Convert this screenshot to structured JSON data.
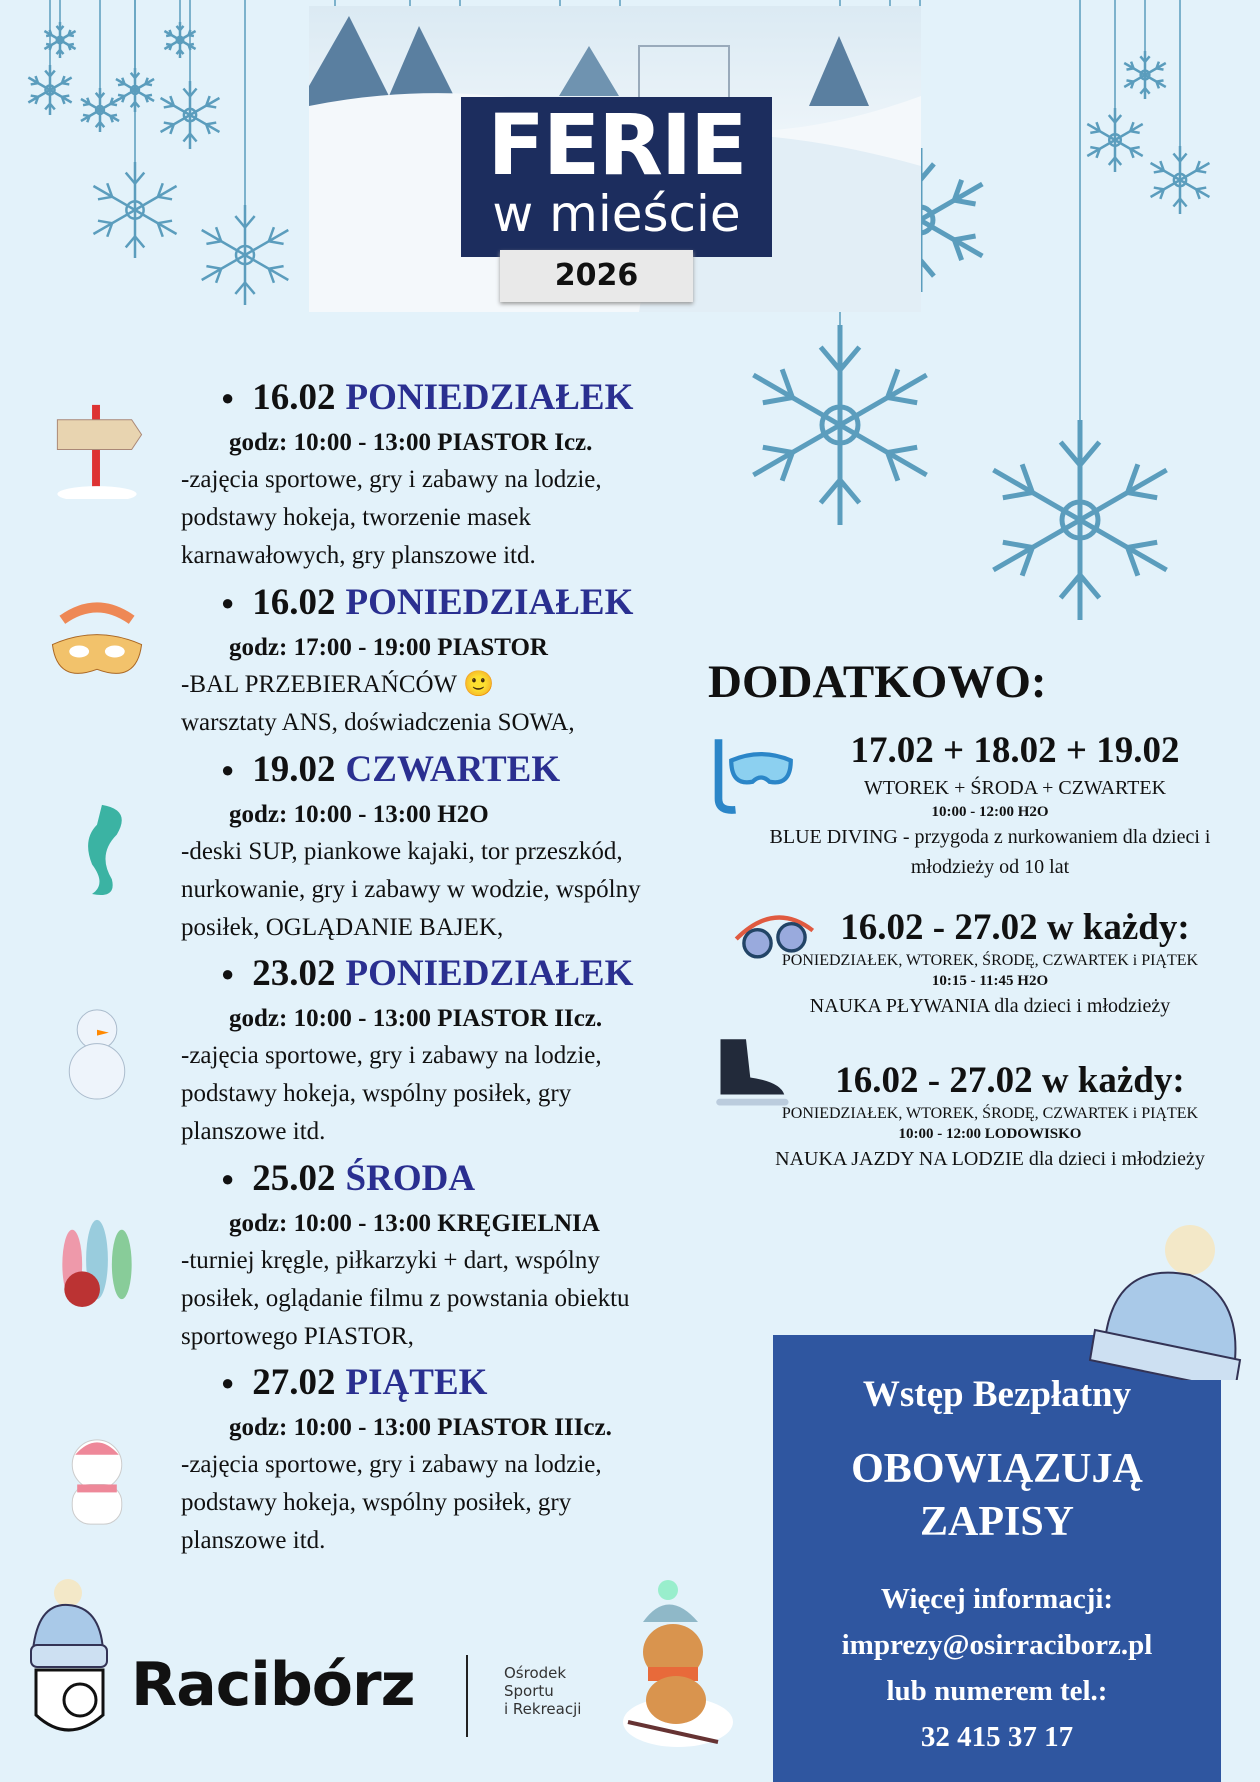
{
  "header": {
    "title": "FERIE",
    "subtitle": "w mieście",
    "year": "2026"
  },
  "events": [
    {
      "date": "16.02",
      "day": "PONIEDZIAŁEK",
      "time": "godz: 10:00 - 13:00 PIASTOR Icz.",
      "desc": "-zajęcia sportowe, gry i zabawy na lodzie,\npodstawy hokeja, tworzenie masek\nkarnawałowych, gry planszowe itd.",
      "icon": "signpost-icon"
    },
    {
      "date": "16.02",
      "day": "PONIEDZIAŁEK",
      "time": "godz: 17:00 - 19:00 PIASTOR",
      "desc": "-BAL PRZEBIERAŃCÓW 🙂\nwarsztaty ANS, doświadczenia SOWA,",
      "icon": "carnival-mask-icon"
    },
    {
      "date": "19.02",
      "day": "CZWARTEK",
      "time": "godz: 10:00 - 13:00 H2O",
      "desc": "-deski SUP, piankowe kajaki, tor przeszkód,\nnurkowanie, gry i zabawy w wodzie, wspólny\nposiłek, OGLĄDANIE BAJEK,",
      "icon": "seahorse-icon"
    },
    {
      "date": "23.02",
      "day": "PONIEDZIAŁEK",
      "time": "godz: 10:00 - 13:00 PIASTOR IIcz.",
      "desc": "-zajęcia sportowe, gry i zabawy na lodzie,\npodstawy hokeja, wspólny posiłek, gry\nplanszowe itd.",
      "icon": "snowman-icon"
    },
    {
      "date": "25.02",
      "day": "ŚRODA",
      "time": "godz: 10:00 - 13:00 KRĘGIELNIA",
      "desc": "-turniej kręgle, piłkarzyki + dart, wspólny\nposiłek, oglądanie filmu z powstania obiektu\nsportowego PIASTOR,",
      "icon": "bowling-icon"
    },
    {
      "date": "27.02",
      "day": "PIĄTEK",
      "time": "godz: 10:00 - 13:00  PIASTOR IIIcz.",
      "desc": "-zajęcia sportowe, gry i zabawy na lodzie,\npodstawy hokeja, wspólny posiłek, gry\nplanszowe itd.",
      "icon": "polar-bear-icon"
    }
  ],
  "extra": {
    "title": "DODATKOWO:",
    "items": [
      {
        "dates": "17.02 + 18.02 + 19.02",
        "days": "WTOREK + ŚRODA + CZWARTEK",
        "time": "10:00 - 12:00 H2O",
        "desc": "BLUE DIVING - przygoda z nurkowaniem dla dzieci i\nmłodzieży od 10 lat",
        "icon": "snorkel-mask-icon"
      },
      {
        "dates": "16.02 - 27.02 w każdy:",
        "days": "PONIEDZIAŁEK, WTOREK, ŚRODĘ, CZWARTEK i PIĄTEK",
        "time": "10:15 - 11:45 H2O",
        "desc": "NAUKA PŁYWANIA dla dzieci i młodzieży",
        "icon": "swim-goggles-icon"
      },
      {
        "dates": "16.02 - 27.02 w każdy:",
        "days": "PONIEDZIAŁEK, WTOREK, ŚRODĘ, CZWARTEK i PIĄTEK",
        "time": "10:00 - 12:00 LODOWISKO",
        "desc": "NAUKA JAZDY NA LODZIE dla dzieci i młodzieży",
        "icon": "ice-skate-icon"
      }
    ]
  },
  "info": {
    "free": "Wstęp Bezpłatny",
    "line1": "OBOWIĄZUJĄ",
    "line2": "ZAPISY",
    "more": "Więcej informacji:",
    "email": "imprezy@osirraciborz.pl",
    "phone_label": "lub numerem tel.:",
    "phone": "32 415 37 17"
  },
  "footer": {
    "city": "Racibórz",
    "org1": "Ośrodek",
    "org2": "Sportu",
    "org3": "i Rekreacji"
  },
  "colors": {
    "background": "#e3f2fa",
    "navy": "#1c2d5e",
    "day_blue": "#2a2f90",
    "info_box": "#2f56a0",
    "snowflake": "#5b9dbd"
  }
}
